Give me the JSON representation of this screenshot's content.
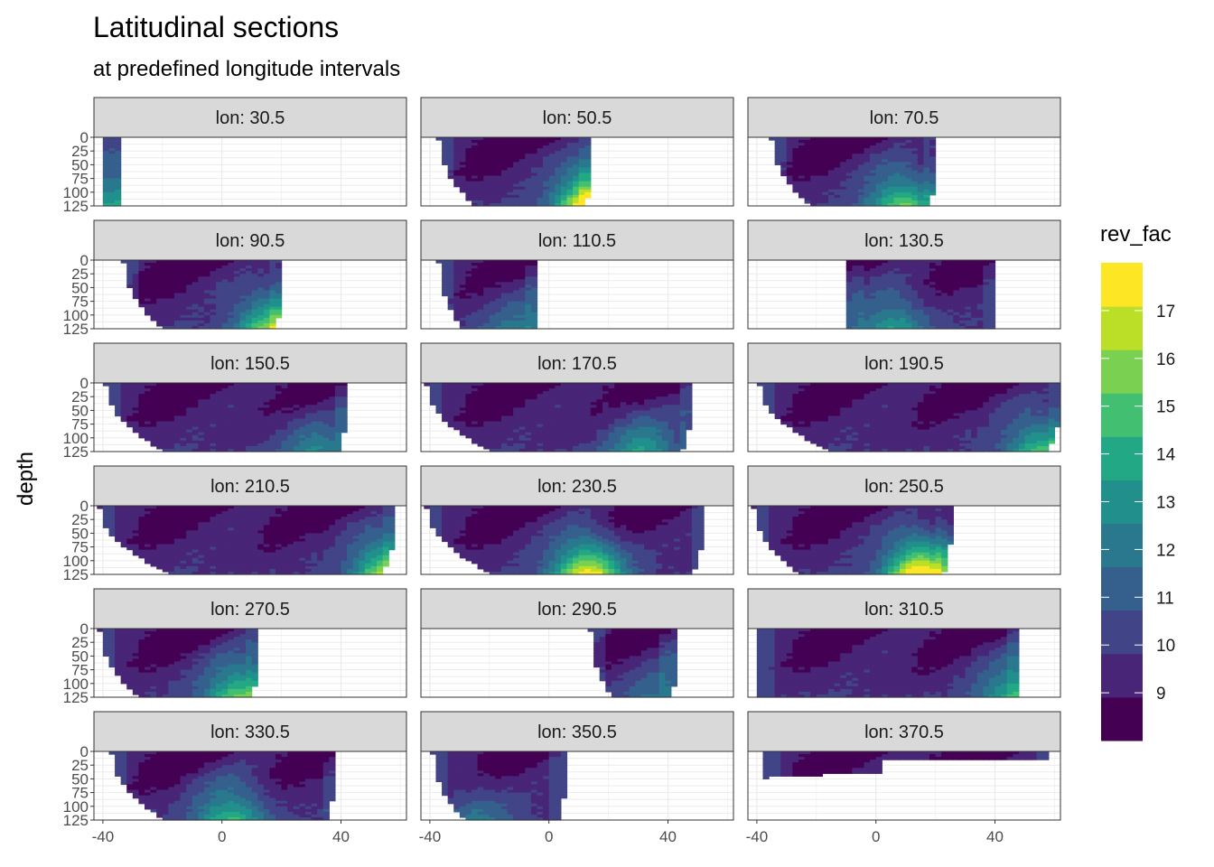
{
  "chart_data": {
    "type": "heatmap",
    "title": "Latitudinal sections",
    "subtitle": "at predefined longitude intervals",
    "ylabel": "depth",
    "xlabel": "",
    "xlim": [
      -43,
      62
    ],
    "ylim": [
      125,
      0
    ],
    "x_ticks": [
      -40,
      0,
      40
    ],
    "y_ticks": [
      0,
      25,
      50,
      75,
      100,
      125
    ],
    "legend": {
      "title": "rev_fac",
      "placement": "right",
      "labels": [
        9,
        10,
        11,
        12,
        13,
        14,
        15,
        16,
        17
      ],
      "breaks": [
        8,
        9,
        10,
        11,
        12,
        13,
        14,
        15,
        16,
        17,
        18
      ],
      "colors": [
        "#440154",
        "#482576",
        "#414487",
        "#35608d",
        "#2a788e",
        "#21908c",
        "#22a884",
        "#43bf71",
        "#7ad151",
        "#bbdf27",
        "#fde725"
      ]
    },
    "facet_prefix": "lon: ",
    "facets": [
      {
        "label": "lon: 30.5",
        "lat_range": [
          -40,
          -34
        ],
        "shape": "narrow",
        "peak": 0.35,
        "hot_lat": -36
      },
      {
        "label": "lon: 50.5",
        "lat_range": [
          -38,
          14
        ],
        "shape": "funnel",
        "peak": 0.95,
        "hot_lat": 13
      },
      {
        "label": "lon: 70.5",
        "lat_range": [
          -36,
          20
        ],
        "shape": "funnel",
        "peak": 0.6,
        "hot_lat": 8
      },
      {
        "label": "lon: 90.5",
        "lat_range": [
          -34,
          20
        ],
        "shape": "funnel",
        "peak": 0.7,
        "hot_lat": 16
      },
      {
        "label": "lon: 110.5",
        "lat_range": [
          -38,
          -4
        ],
        "shape": "funnel",
        "peak": 0.25,
        "hot_lat": -12
      },
      {
        "label": "lon: 130.5",
        "lat_range": [
          -10,
          40
        ],
        "shape": "block",
        "peak": 0.4,
        "hot_lat": 5
      },
      {
        "label": "lon: 150.5",
        "lat_range": [
          -40,
          42
        ],
        "shape": "funnel",
        "peak": 0.3,
        "hot_lat": 30
      },
      {
        "label": "lon: 170.5",
        "lat_range": [
          -42,
          48
        ],
        "shape": "funnel",
        "peak": 0.4,
        "hot_lat": 30
      },
      {
        "label": "lon: 190.5",
        "lat_range": [
          -40,
          62
        ],
        "shape": "funnel",
        "peak": 0.55,
        "hot_lat": 55
      },
      {
        "label": "lon: 210.5",
        "lat_range": [
          -42,
          58
        ],
        "shape": "funnel",
        "peak": 0.75,
        "hot_lat": 55
      },
      {
        "label": "lon: 230.5",
        "lat_range": [
          -42,
          52
        ],
        "shape": "funnel",
        "peak": 0.85,
        "hot_lat": 12
      },
      {
        "label": "lon: 250.5",
        "lat_range": [
          -42,
          25
        ],
        "shape": "funnel",
        "peak": 0.97,
        "hot_lat": 14
      },
      {
        "label": "lon: 270.5",
        "lat_range": [
          -42,
          12
        ],
        "shape": "funnel",
        "peak": 0.6,
        "hot_lat": 5
      },
      {
        "label": "lon: 290.5",
        "lat_range": [
          13,
          42
        ],
        "shape": "funnel",
        "peak": 0.2,
        "hot_lat": 35
      },
      {
        "label": "lon: 310.5",
        "lat_range": [
          -40,
          48
        ],
        "shape": "block",
        "peak": 0.45,
        "hot_lat": 45
      },
      {
        "label": "lon: 330.5",
        "lat_range": [
          -38,
          38
        ],
        "shape": "funnel",
        "peak": 0.5,
        "hot_lat": 2
      },
      {
        "label": "lon: 350.5",
        "lat_range": [
          -40,
          5
        ],
        "shape": "funnel",
        "peak": 0.25,
        "hot_lat": -25
      },
      {
        "label": "lon: 370.5",
        "lat_range": [
          -38,
          58
        ],
        "shape": "shallow",
        "peak": 0.4,
        "hot_lat": 30
      }
    ]
  }
}
